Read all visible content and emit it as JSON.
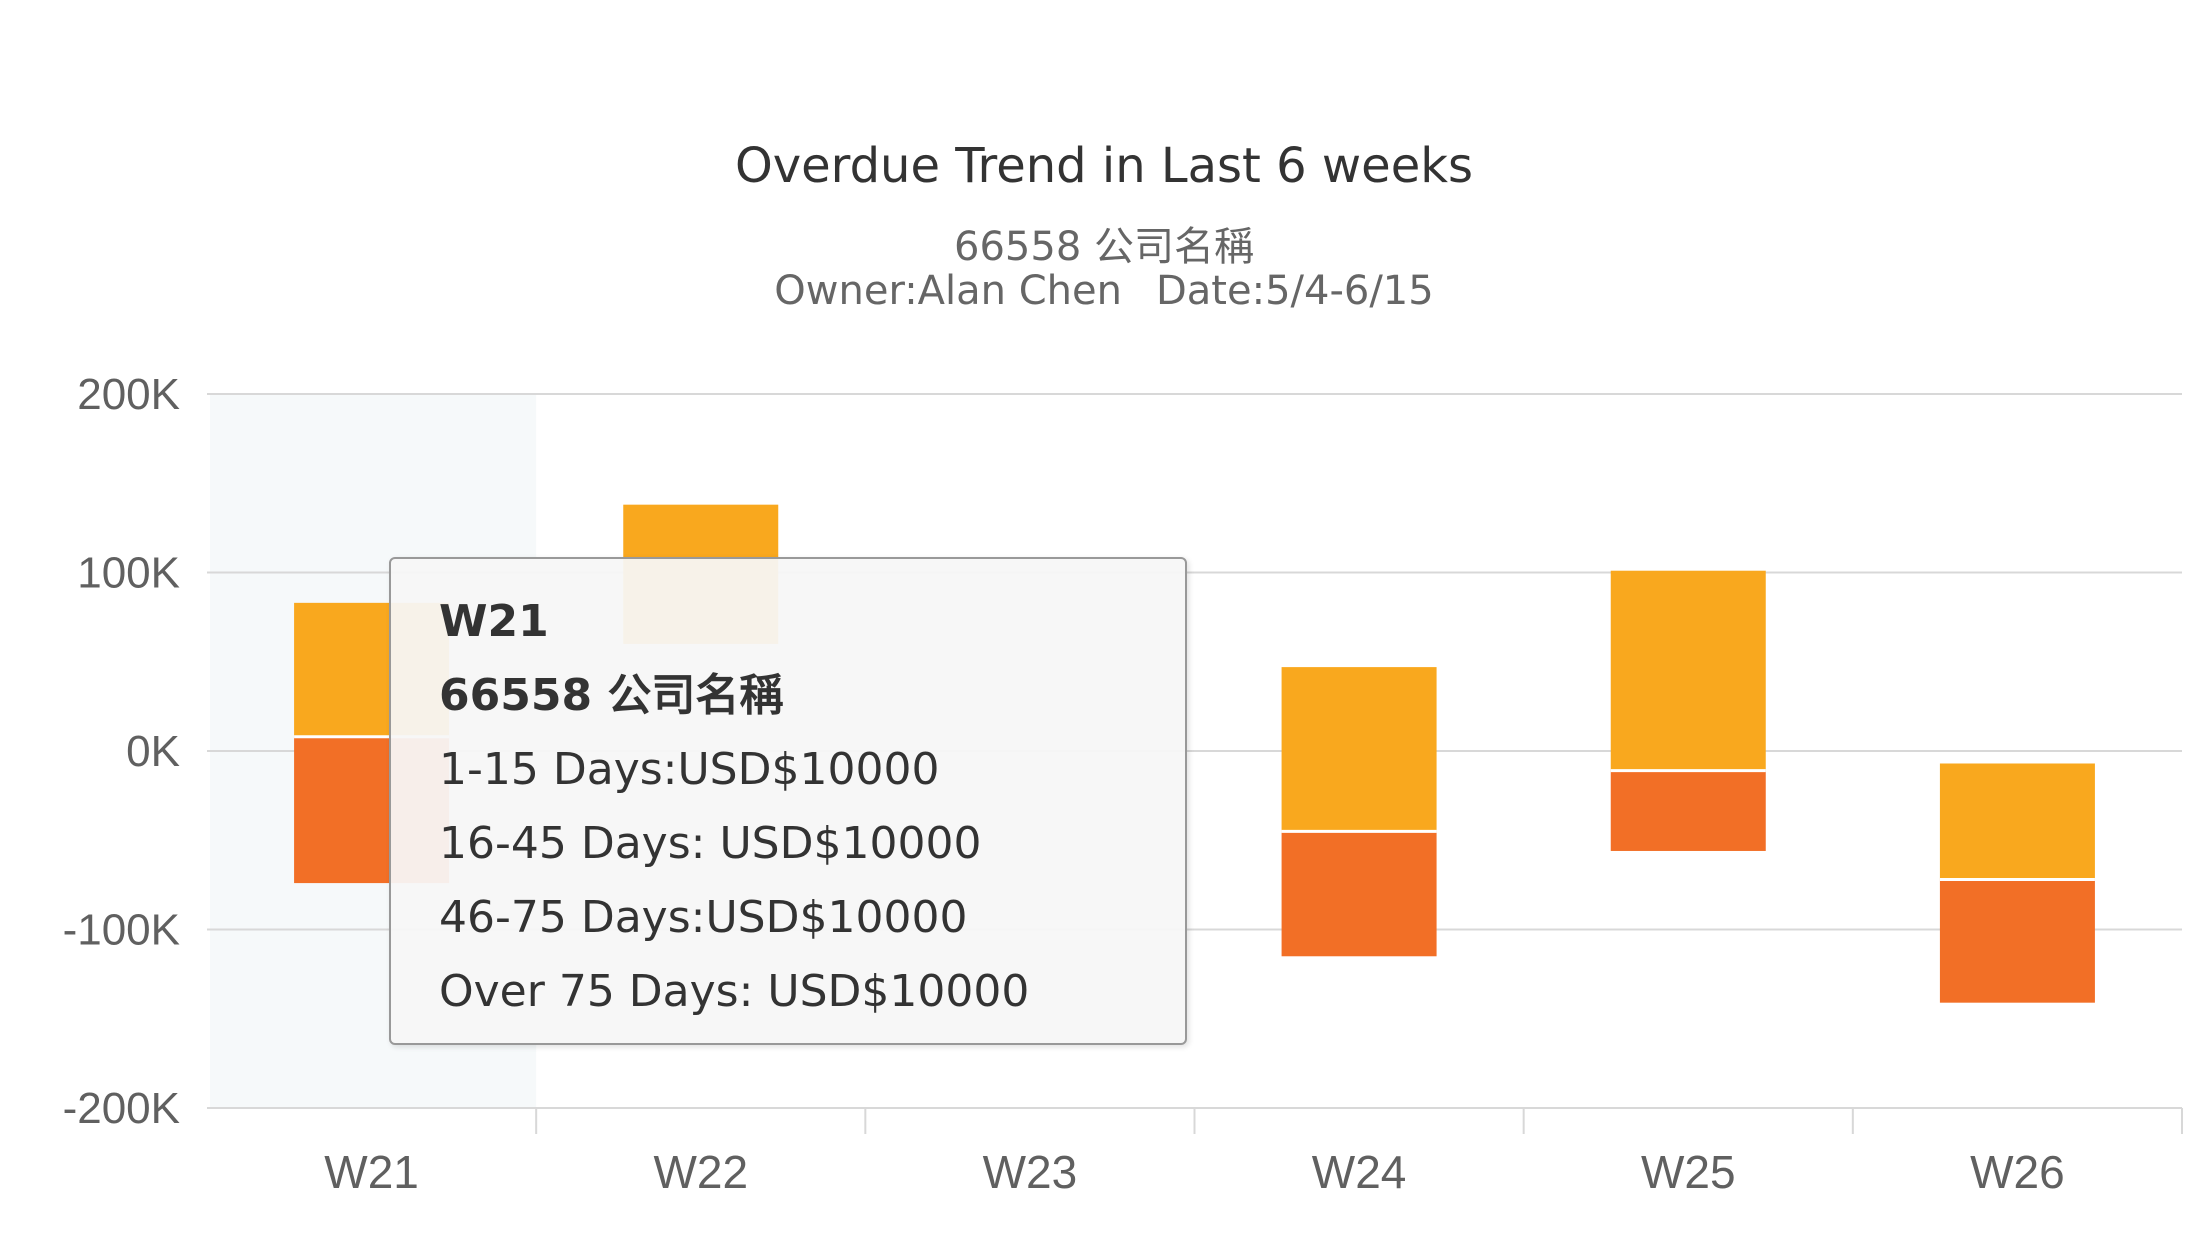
{
  "chart_data": {
    "type": "bar",
    "stacked": true,
    "title": "Overdue Trend in Last 6 weeks",
    "subtitle": [
      "66558 公司名稱",
      "Owner:Alan Chen",
      "Date:5/4-6/15"
    ],
    "categories": [
      "W21",
      "W22",
      "W23",
      "W24",
      "W25",
      "W26"
    ],
    "ylim": [
      -200000,
      200000
    ],
    "yticks": [
      200000,
      100000,
      0,
      -100000,
      -200000
    ],
    "ytick_labels": [
      "200K",
      "100K",
      "0K",
      "-100K",
      "-200K"
    ],
    "grid": true,
    "highlighted_category": "W21",
    "segments": [
      {
        "category": "W21",
        "upper": [
          8000,
          83000
        ],
        "lower": [
          -74000,
          8000
        ]
      },
      {
        "category": "W22",
        "upper": [
          null,
          138000
        ],
        "lower": null
      },
      {
        "category": "W23",
        "upper": null,
        "lower": null
      },
      {
        "category": "W24",
        "upper": [
          -45000,
          47000
        ],
        "lower": [
          -115000,
          -45000
        ]
      },
      {
        "category": "W25",
        "upper": [
          -11000,
          101000
        ],
        "lower": [
          -56000,
          -11000
        ]
      },
      {
        "category": "W26",
        "upper": [
          -72000,
          -7000
        ],
        "lower": [
          -141000,
          -72000
        ]
      }
    ],
    "colors": {
      "upper": "#F9A81E",
      "lower": "#F26F26",
      "grid": "#D8D8D8",
      "highlight": "#F6F9FA",
      "axis_text": "#606060"
    }
  },
  "tooltip": {
    "title": "W21",
    "company": "66558 公司名稱",
    "lines": [
      "1-15 Days:USD$10000",
      "16-45 Days: USD$10000",
      "46-75 Days:USD$10000",
      "Over 75 Days: USD$10000"
    ]
  }
}
